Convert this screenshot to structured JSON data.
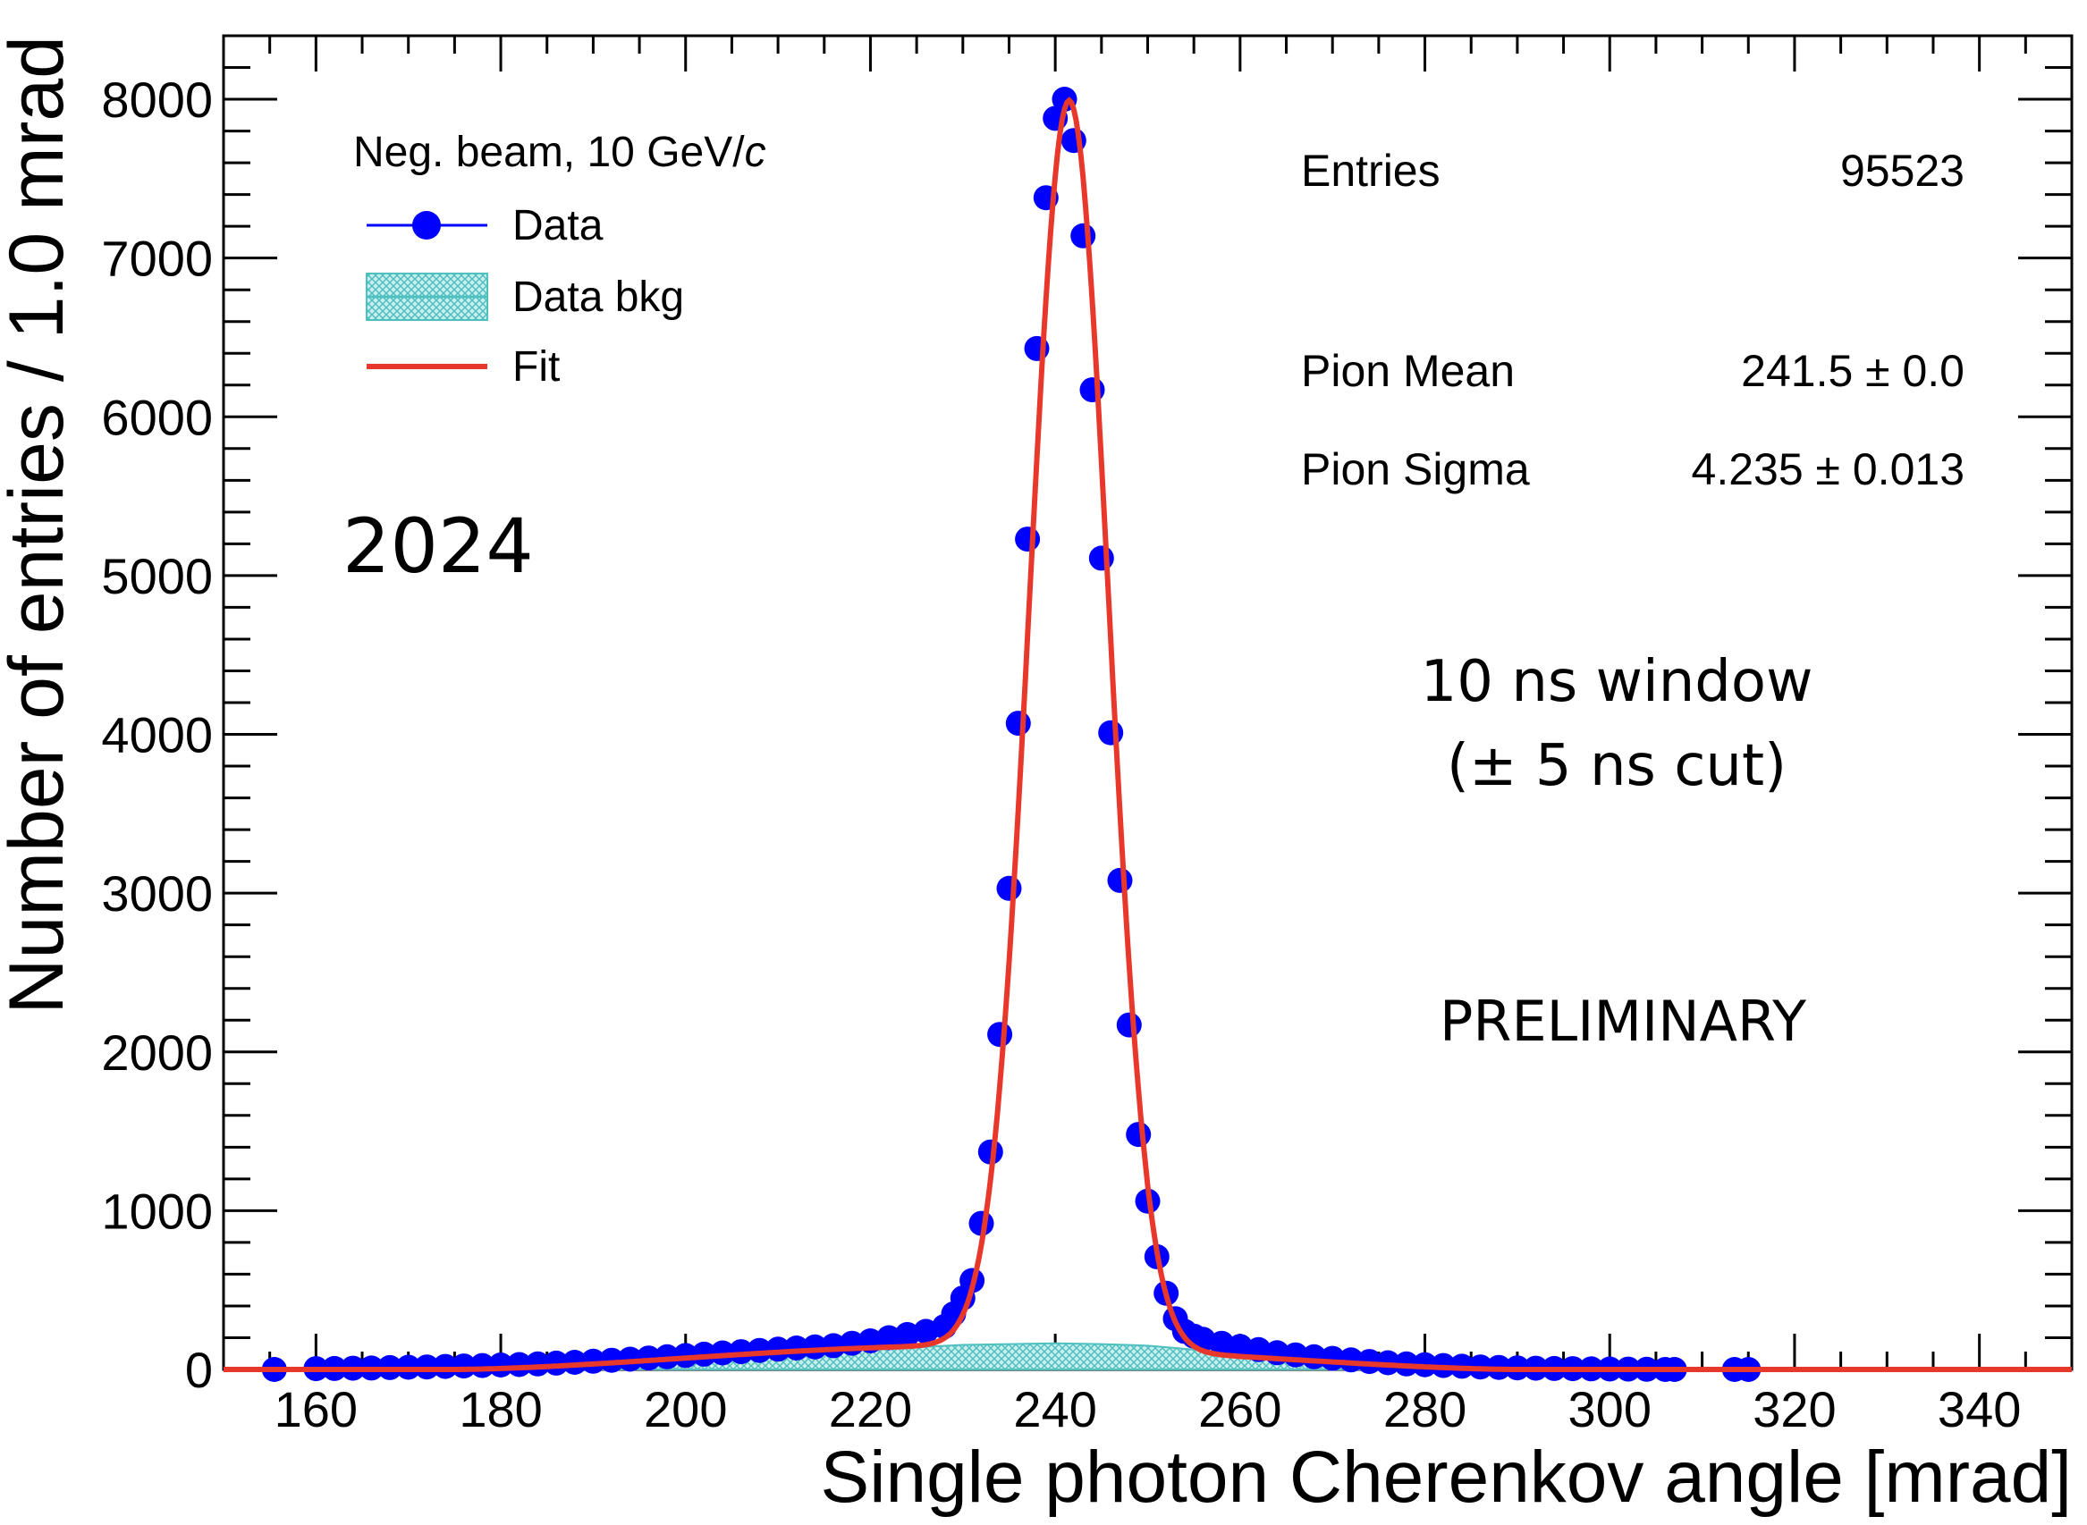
{
  "chart_data": {
    "type": "scatter",
    "title": "",
    "xlabel": "Single photon Cherenkov angle [mrad]",
    "ylabel": "Number of entries / 1.0 mrad",
    "xlim": [
      150,
      350
    ],
    "ylim": [
      0,
      8400
    ],
    "x_ticks": [
      160,
      180,
      200,
      220,
      240,
      260,
      280,
      300,
      320,
      340
    ],
    "x_tick_labels": [
      "160",
      "180",
      "200",
      "220",
      "240",
      "260",
      "280",
      "300",
      "320",
      "340"
    ],
    "y_ticks": [
      0,
      1000,
      2000,
      3000,
      4000,
      5000,
      6000,
      7000,
      8000
    ],
    "y_tick_labels": [
      "0",
      "1000",
      "2000",
      "3000",
      "4000",
      "5000",
      "6000",
      "7000",
      "8000"
    ],
    "legend": {
      "header": "Neg. beam, 10 GeV/",
      "header_italic": "c",
      "entries": [
        "Data",
        "Data bkg",
        "Fit"
      ]
    },
    "stats": {
      "entries_label": "Entries",
      "entries_value": "95523",
      "mean_label": "Pion Mean",
      "mean_value": "241.5 ± 0.0",
      "sigma_label": "Pion Sigma",
      "sigma_value": "4.235 ± 0.013"
    },
    "annotations": {
      "year": "2024",
      "window_line1": "10 ns window",
      "window_line2": "(± 5 ns cut)",
      "status": "PRELIMINARY"
    },
    "series": [
      {
        "name": "Data",
        "color": "#0000ff",
        "points": [
          [
            155.5,
            0
          ],
          [
            160,
            5
          ],
          [
            162,
            6
          ],
          [
            164,
            8
          ],
          [
            166,
            9
          ],
          [
            168,
            12
          ],
          [
            170,
            14
          ],
          [
            172,
            16
          ],
          [
            174,
            19
          ],
          [
            176,
            22
          ],
          [
            178,
            25
          ],
          [
            180,
            28
          ],
          [
            182,
            31
          ],
          [
            184,
            35
          ],
          [
            186,
            40
          ],
          [
            188,
            45
          ],
          [
            190,
            52
          ],
          [
            192,
            58
          ],
          [
            194,
            65
          ],
          [
            196,
            72
          ],
          [
            198,
            80
          ],
          [
            200,
            88
          ],
          [
            202,
            96
          ],
          [
            204,
            104
          ],
          [
            206,
            112
          ],
          [
            208,
            120
          ],
          [
            210,
            128
          ],
          [
            212,
            135
          ],
          [
            214,
            142
          ],
          [
            216,
            150
          ],
          [
            218,
            165
          ],
          [
            220,
            180
          ],
          [
            222,
            200
          ],
          [
            224,
            220
          ],
          [
            226,
            240
          ],
          [
            228,
            270
          ],
          [
            229,
            350
          ],
          [
            230,
            450
          ],
          [
            231,
            560
          ],
          [
            232,
            920
          ],
          [
            233,
            1370
          ],
          [
            234,
            2110
          ],
          [
            235,
            3030
          ],
          [
            236,
            4070
          ],
          [
            237,
            5230
          ],
          [
            238,
            6430
          ],
          [
            239,
            7380
          ],
          [
            240,
            7880
          ],
          [
            241,
            8000
          ],
          [
            242,
            7740
          ],
          [
            243,
            7140
          ],
          [
            244,
            6170
          ],
          [
            245,
            5110
          ],
          [
            246,
            4010
          ],
          [
            247,
            3080
          ],
          [
            248,
            2170
          ],
          [
            249,
            1480
          ],
          [
            250,
            1060
          ],
          [
            251,
            710
          ],
          [
            252,
            480
          ],
          [
            253,
            320
          ],
          [
            254,
            240
          ],
          [
            255,
            210
          ],
          [
            256,
            190
          ],
          [
            258,
            165
          ],
          [
            260,
            145
          ],
          [
            262,
            125
          ],
          [
            264,
            105
          ],
          [
            266,
            92
          ],
          [
            268,
            80
          ],
          [
            270,
            70
          ],
          [
            272,
            60
          ],
          [
            274,
            50
          ],
          [
            276,
            42
          ],
          [
            278,
            35
          ],
          [
            280,
            30
          ],
          [
            282,
            25
          ],
          [
            284,
            20
          ],
          [
            286,
            16
          ],
          [
            288,
            13
          ],
          [
            290,
            10
          ],
          [
            292,
            8
          ],
          [
            294,
            6
          ],
          [
            296,
            5
          ],
          [
            298,
            4
          ],
          [
            300,
            3
          ],
          [
            302,
            2
          ],
          [
            304,
            1
          ],
          [
            306,
            0
          ],
          [
            307,
            0
          ],
          [
            313.5,
            0
          ],
          [
            315,
            0
          ]
        ]
      },
      {
        "name": "Data bkg",
        "color": "#4fbfbf",
        "points": [
          [
            186,
            10
          ],
          [
            190,
            25
          ],
          [
            195,
            50
          ],
          [
            200,
            75
          ],
          [
            205,
            95
          ],
          [
            210,
            105
          ],
          [
            215,
            115
          ],
          [
            220,
            125
          ],
          [
            225,
            140
          ],
          [
            230,
            155
          ],
          [
            235,
            160
          ],
          [
            240,
            165
          ],
          [
            245,
            160
          ],
          [
            250,
            150
          ],
          [
            255,
            125
          ],
          [
            260,
            95
          ],
          [
            265,
            65
          ],
          [
            270,
            35
          ],
          [
            275,
            15
          ],
          [
            280,
            5
          ]
        ]
      },
      {
        "name": "Fit",
        "color": "#e8372b",
        "mean": 241.5,
        "sigma": 4.235,
        "amplitude": 7850,
        "tail_level": 150
      }
    ]
  }
}
